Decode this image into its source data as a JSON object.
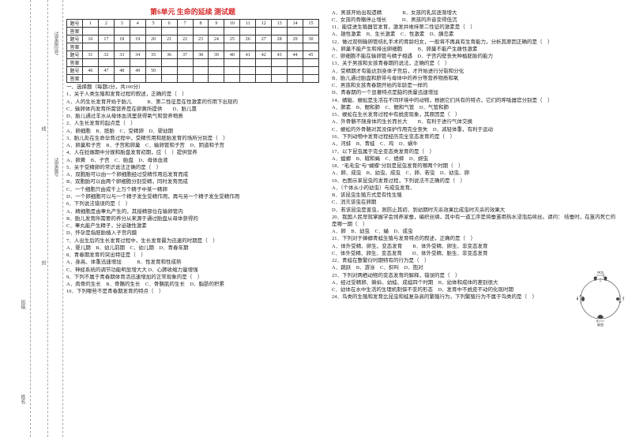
{
  "title": "第6单元  生命的延续  测试题",
  "answerTable": {
    "rowLabels": [
      "题号",
      "答案",
      "题号",
      "答案",
      "题号",
      "答案",
      "题号",
      "答案"
    ],
    "numRows": [
      [
        "1",
        "2",
        "3",
        "4",
        "5",
        "6",
        "7",
        "8",
        "9",
        "10",
        "11",
        "12",
        "13",
        "14",
        "15"
      ],
      [
        "16",
        "17",
        "18",
        "19",
        "20",
        "21",
        "22",
        "23",
        "24",
        "25",
        "26",
        "27",
        "28",
        "29",
        "30"
      ],
      [
        "31",
        "32",
        "33",
        "34",
        "35",
        "36",
        "37",
        "38",
        "39",
        "40",
        "41",
        "42",
        "43",
        "44",
        "45"
      ],
      [
        "46",
        "47",
        "48",
        "49",
        "50",
        "",
        "",
        "",
        "",
        "",
        "",
        "",
        "",
        "",
        ""
      ]
    ]
  },
  "bindingLabels": {
    "name": "姓名",
    "class": "班级",
    "seat": "试室座位号",
    "exam": "试室座号",
    "dash1": "┊",
    "fold": "封",
    "cut": "线"
  },
  "sectionA": "一、选择题（每题2分，共100分）",
  "leftQuestions": [
    "1．关于人类生殖和发育过程的叙述，正确的是（　）",
    "A．人的生长发育开始于胎儿　　　B．第二性征是在性激素的作用下出现的",
    "C．输卵体内发育所需营养是在卵黄所提供　　D．胎儿靠",
    "D．胎儿通过羊水从母体血流里获得氧气和营养物质",
    "2．人生长发育的起点是（　）",
    "A．卵细胞　B．胚胎　C．受精卵　D．婴幼期",
    "3．胎儿处在生命孕育过程中，受精作用和胚胎发育的场所分别是（　）",
    "A．卵巢和子宫　B．子宫和卵巢　C．输卵管和子宫　D．阴道和子宫",
    "4．人在妊娠期中分娩和胎盘发育初期，应（　）提供营养",
    "A．卵黄　B．子宫　C．胎盘　D．母体血液",
    "5．关于受精卵的常识说法正确的是（　）",
    "A．双胞胎可以由一个卵细胞经过受精作用后发育而成",
    "B．双胞胎可以由两个卵细胞分别受精，同时发育而成",
    "C．一个细胞只由成千上万个精子中某一精卵",
    "D．一个卵细胞可以与一个精子发生受精作用，再与另一个精子发生受精作用",
    "6．下列说法错误的是（　）",
    "A．精细胞是由睾丸产生的，其授精部位在输卵管内",
    "B．胎儿发育所需要的养分从来源于通过胎盘从母体获得的",
    "C．睾丸能产生精子，分泌雄性激素",
    "D．怀孕是指胚胎植入子宫内膜",
    "7．人出生后的生长发育过程中，生长发育最为迅速的时期是（　）",
    "A．婴儿期　B．幼儿前期　C．幼儿期　D．青春年期",
    "8．青春期发育的突出特征是（　）",
    "A．身高、体重迅速增加　　　B．性发育和性成熟",
    "C．神经系统的调节功能明显增大大 D．心肺收缩力量增强",
    "9．下列不属于青春期体育活迅速增加的正常现象的是（　）",
    "A．肉骨的生长　B．骨骼的生长　C．骨骼肌的生长　D．脂肪的积累",
    "10．下列哪些不是青春期发育的特点（　）"
  ],
  "rightQuestions": [
    "A．男孩开始出现遗精　　　　B．女孩的乳房逐渐增大",
    "C．女孩的骨骼停止增长　　　D．男孩的声音变得低沉",
    "11．能促进生殖器官发育，激发并维持第二性征的激素是（　）",
    "A．雄性激素　B．生长激素　C．性激素　D．胰岛素",
    "12．做过双侧输卵管结扎手术的育龄妇女，一般将不再具有生育能力，分析其原因正确的是（　）",
    "A．卵巢不能产生和排出卵细胞　　　B．卵巢不能产生雌性激素",
    "C．卵细胞不能在输卵管与精子相遇　D．子宫内壁丧失种植胚胎的能力",
    "13．关于男孩和女孩青春期的说法，正确的是（　）",
    "A．受精期才有能达到身体子宫后，才开始进行分裂和分化",
    "B．胎儿通过胎盘和脐带与母体中的养分等营养物质和氧",
    "C．男孩和女孩青春期开始的年龄是一样的",
    "D．青春期的一个显著特点是脑的质量迅速增加",
    "14．蜻蜓、蜈蚣是生活在不同环境中的动物，根据它们共有的特点，它们的呼吸器官分别是（　）",
    "A．肺素　B．鳃和肺　C．鳃和气管　D．气管和肺",
    "15．蜈蚣在生长发育过程中有蜕皮现象，其原因是（　）",
    "A．外骨骼不随身体的生长而长大　　B．有利于进行气体交换",
    "C．蜈蚣的外骨骼对其没保护作用完全丧失　D．减轻体重，有利于运动",
    "16．下列动物中发育过程经历完全变态发育的是（　）",
    "A．河蚌　B．青蛙　C．鸡　D．蜗牛",
    "17．以下昆虫属于完全变态类发育的是（　）",
    "A．蝗螂　B．蛾和蝇　C．蟋蟀　D．蚜虫",
    "18．\"毛毛虫\"与\"蝴蝶\"分别是昆虫发育的哪两个时期（　）",
    "A．卵、成虫　B．幼虫、成虫　C．卵、若虫　D．幼虫、卵",
    "19．右图示某昆虫的发育过程，下列说法不正确的是（　）",
    "A．（个体从小的幼虫）与成虫发育、",
    "B．该昆虫生殖方式是有性生殖",
    "C．消灭该虫在卵期",
    "D．若该昆虫是害虫，则防止其初、到幼期时灭杀效果比成虫时灭杀的效果大",
    "20．我国人民早就掌握学会饲养家蚕，编织丝绸，其中有一道工序是将蚕茧用热水浸泡后续丝。请问： 结蚕时，在茧内死亡的是哪一期（　）",
    "A．卵　B．幼虫　C．蛹　D．成虫",
    "21．下列对于蟑螂青蛙生殖与发育特点的叙述，正确的是（　）",
    "A．体外受精、卵生、变态发育　　B．体外受精、卵生、非变态发育",
    "C．体外受精、卵生、变态发育　　D．体外受精、胎生、非变态发育",
    "22．青蛙在整繁衍时期特有的行为是（　）",
    "A．跳跃　B．游泳　C．抧叫　D．抱对",
    "23．下列对两栖动物的变态发育的解释，错误的是（　）",
    "A．经过受精卵、蝌蚪、幼蛙、成蛙四个时期　B．幼体和成体的差别很大",
    "C．幼体在水中生活的生理机制保不变的形态　D．发育中不蜕皮不动的化现时期",
    "24．鸟类的生殖和发育比昆虫和蛙复杂高的繁殖行为，下列繁殖行为不属于鸟类的是（　）"
  ],
  "diagram": {
    "top": "成虫",
    "right": "受精卵",
    "bottom": "幼虫",
    "left": "蛹"
  }
}
